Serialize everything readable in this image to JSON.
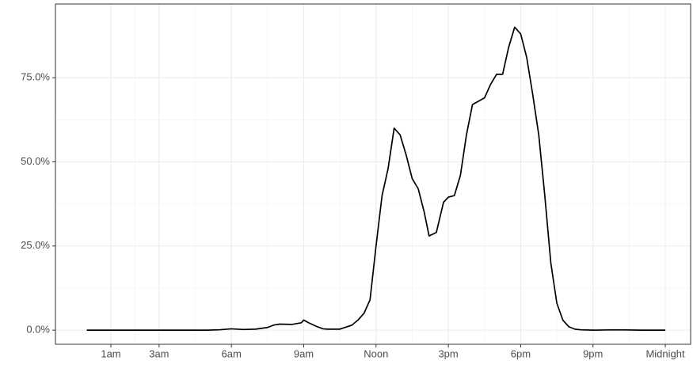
{
  "chart_data": {
    "type": "line",
    "x": [
      0,
      1,
      2,
      3,
      4,
      5,
      5.5,
      6,
      6.5,
      7,
      7.5,
      7.75,
      8,
      8.5,
      8.9,
      9,
      9.2,
      9.5,
      9.8,
      10,
      10.5,
      11,
      11.25,
      11.5,
      11.75,
      12,
      12.25,
      12.5,
      12.75,
      13,
      13.25,
      13.5,
      13.75,
      14,
      14.2,
      14.5,
      14.8,
      15,
      15.25,
      15.5,
      15.75,
      16,
      16.25,
      16.5,
      16.75,
      17,
      17.25,
      17.5,
      17.75,
      18,
      18.25,
      18.5,
      18.75,
      19,
      19.25,
      19.5,
      19.75,
      20,
      20.25,
      20.5,
      21,
      22,
      23,
      24
    ],
    "values": [
      0,
      0,
      0,
      0,
      0,
      0,
      0.1,
      0.4,
      0.2,
      0.3,
      0.8,
      1.5,
      1.8,
      1.7,
      2.2,
      3,
      2.2,
      1.2,
      0.4,
      0.3,
      0.3,
      1.5,
      3,
      5,
      9,
      25,
      40,
      48,
      60,
      58,
      52,
      45,
      42,
      35,
      28,
      29,
      38,
      39.5,
      40,
      46,
      58,
      67,
      68,
      69,
      73,
      76,
      76,
      84,
      90,
      88,
      81,
      70,
      58,
      40,
      20,
      8,
      3,
      1,
      0.3,
      0.1,
      0,
      0.1,
      0,
      0
    ],
    "color": "#000000",
    "xlim": [
      -1.3,
      25.05
    ],
    "xticks": [
      {
        "value": 1,
        "label": "1am"
      },
      {
        "value": 3,
        "label": "3am"
      },
      {
        "value": 6,
        "label": "6am"
      },
      {
        "value": 9,
        "label": "9am"
      },
      {
        "value": 12,
        "label": "Noon"
      },
      {
        "value": 15,
        "label": "3pm"
      },
      {
        "value": 18,
        "label": "6pm"
      },
      {
        "value": 21,
        "label": "9pm"
      },
      {
        "value": 24,
        "label": "Midnight"
      }
    ],
    "ylim": [
      -4.2,
      96.9
    ],
    "yticks": [
      {
        "value": 0,
        "label": "0.0%"
      },
      {
        "value": 25,
        "label": "25.0%"
      },
      {
        "value": 50,
        "label": "50.0%"
      },
      {
        "value": 75,
        "label": "75.0%"
      }
    ],
    "grid": true
  }
}
